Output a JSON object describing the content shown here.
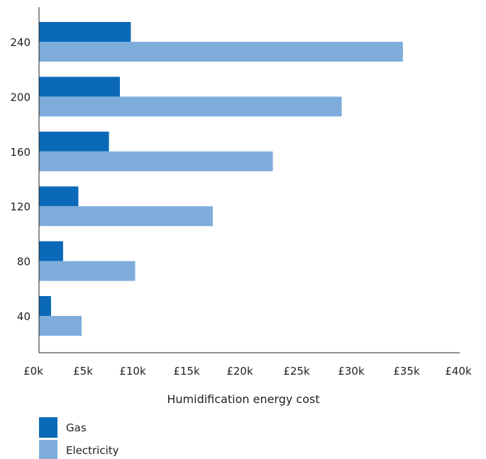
{
  "chart_data": {
    "type": "bar",
    "orientation": "horizontal",
    "categories": [
      "240",
      "200",
      "160",
      "120",
      "80",
      "40"
    ],
    "series": [
      {
        "name": "Gas",
        "color": "#0a6ab8",
        "values": [
          8400,
          7400,
          6400,
          3600,
          2200,
          1100
        ]
      },
      {
        "name": "Electricity",
        "color": "#7eaddb",
        "values": [
          33300,
          27700,
          21400,
          15900,
          8800,
          3900
        ]
      }
    ],
    "xlim": [
      0,
      38500
    ],
    "xticks": [
      {
        "value": 0,
        "label": "£0k"
      },
      {
        "value": 5000,
        "label": "£5k"
      },
      {
        "value": 10000,
        "label": "£10k"
      },
      {
        "value": 15000,
        "label": "£15k"
      },
      {
        "value": 20000,
        "label": "£20k"
      },
      {
        "value": 25000,
        "label": "£25k"
      },
      {
        "value": 30000,
        "label": "£30k"
      },
      {
        "value": 35000,
        "label": "£35k"
      },
      {
        "value": 40000,
        "label": "£40k"
      }
    ],
    "xlabel": "Humidification energy cost",
    "ylabel": "",
    "title": "",
    "grid": false,
    "legend_position": "bottom-left"
  }
}
